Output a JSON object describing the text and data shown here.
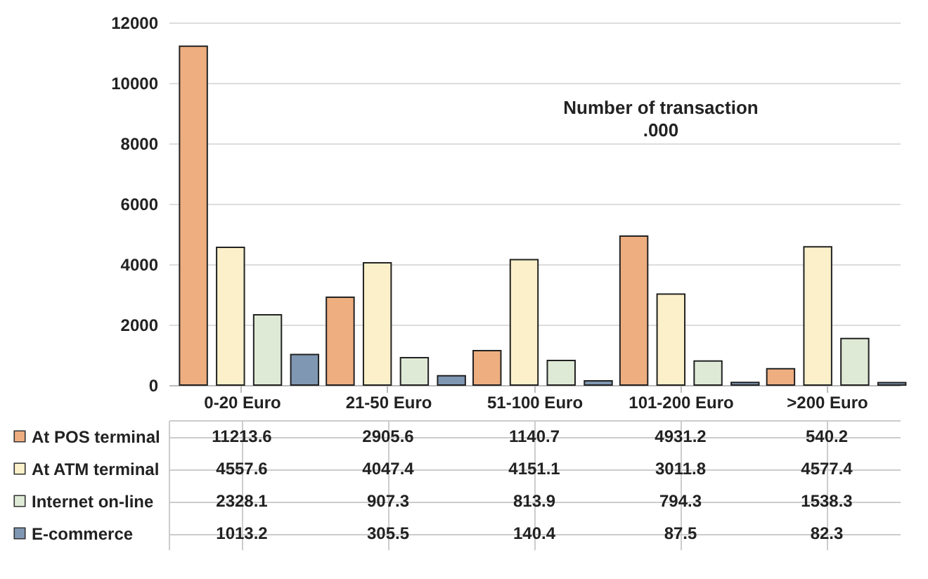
{
  "chart_data": {
    "type": "bar",
    "title": "Number of transaction",
    "subtitle": ".000",
    "categories": [
      "0-20 Euro",
      "21-50 Euro",
      "51-100 Euro",
      "101-200 Euro",
      ">200 Euro"
    ],
    "series": [
      {
        "name": "At POS terminal",
        "color": "#eeae80",
        "values": [
          11213.6,
          2905.6,
          1140.7,
          4931.2,
          540.2
        ]
      },
      {
        "name": "At ATM terminal",
        "color": "#fbf0c9",
        "values": [
          4557.6,
          4047.4,
          4151.1,
          3011.8,
          4577.4
        ]
      },
      {
        "name": "Internet on-line",
        "color": "#dfead6",
        "values": [
          2328.1,
          907.3,
          813.9,
          794.3,
          1538.3
        ]
      },
      {
        "name": "E-commerce",
        "color": "#7f97b2",
        "values": [
          1013.2,
          305.5,
          140.4,
          87.5,
          82.3
        ]
      }
    ],
    "ylim": [
      0,
      12000
    ],
    "yticks": [
      0,
      2000,
      4000,
      6000,
      8000,
      10000,
      12000
    ],
    "grid": "y",
    "legend": "bottom left",
    "data_labels": true
  }
}
